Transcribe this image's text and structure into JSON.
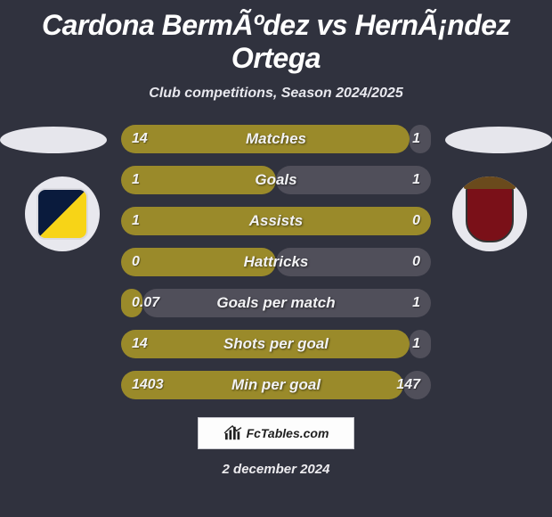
{
  "header": {
    "title": "Cardona BermÃºdez vs HernÃ¡ndez Ortega",
    "subtitle": "Club competitions, Season 2024/2025"
  },
  "colors": {
    "bg": "#30323e",
    "bar_left": "#9a8a2a",
    "bar_right": "#504f5a",
    "oval": "#e6e6ec",
    "badge_bg": "#e8e8ee"
  },
  "rows": [
    {
      "left": "14",
      "label": "Matches",
      "right": "1",
      "left_pct": 93,
      "right_pct": 7
    },
    {
      "left": "1",
      "label": "Goals",
      "right": "1",
      "left_pct": 50,
      "right_pct": 50
    },
    {
      "left": "1",
      "label": "Assists",
      "right": "0",
      "left_pct": 100,
      "right_pct": 0
    },
    {
      "left": "0",
      "label": "Hattricks",
      "right": "0",
      "left_pct": 50,
      "right_pct": 50
    },
    {
      "left": "0.07",
      "label": "Goals per match",
      "right": "1",
      "left_pct": 7,
      "right_pct": 93
    },
    {
      "left": "14",
      "label": "Shots per goal",
      "right": "1",
      "left_pct": 93,
      "right_pct": 7
    },
    {
      "left": "1403",
      "label": "Min per goal",
      "right": "147",
      "left_pct": 91,
      "right_pct": 9
    }
  ],
  "footer": {
    "logo_text": "FcTables.com",
    "date": "2 december 2024"
  }
}
